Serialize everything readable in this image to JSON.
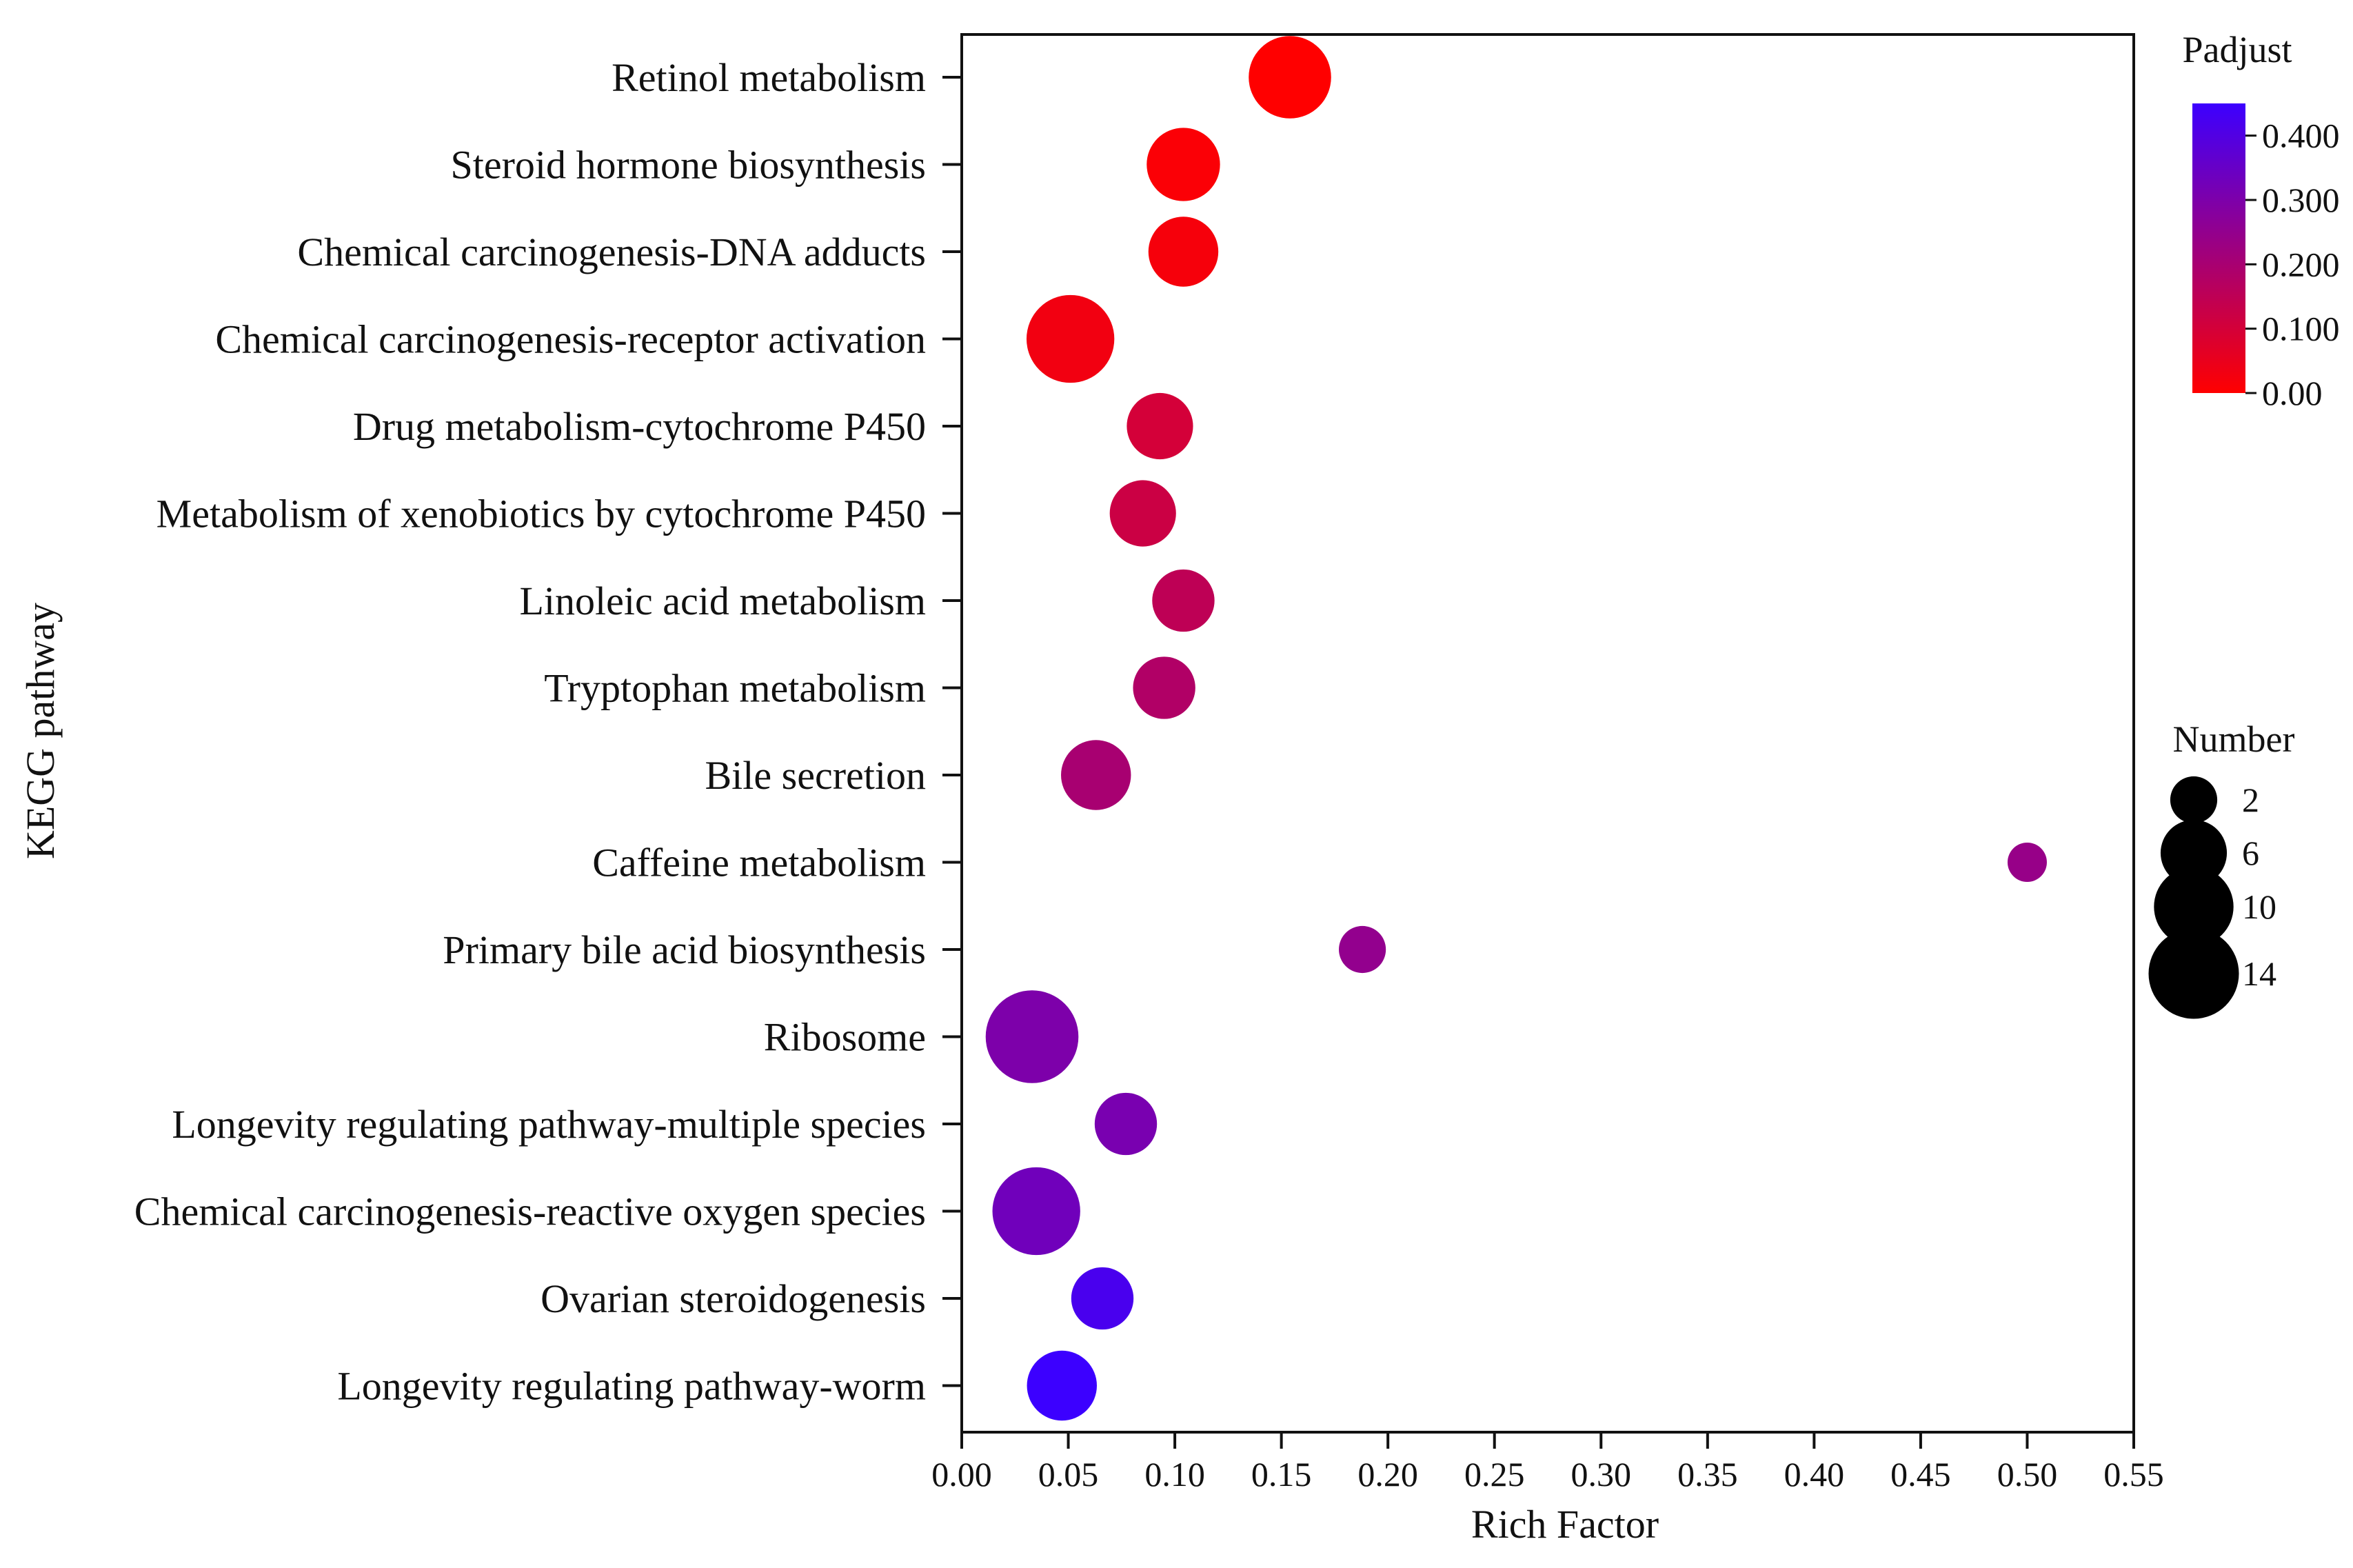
{
  "chart_data": {
    "type": "scatter",
    "xlabel": "Rich Factor",
    "ylabel": "KEGG pathway",
    "xlim": [
      0.0,
      0.55
    ],
    "xticks": [
      "0.00",
      "0.05",
      "0.10",
      "0.15",
      "0.20",
      "0.25",
      "0.30",
      "0.35",
      "0.40",
      "0.45",
      "0.50",
      "0.55"
    ],
    "grid": false,
    "points": [
      {
        "pathway": "Retinol metabolism",
        "rich_factor": 0.154,
        "number": 11,
        "padjust": 0.0
      },
      {
        "pathway": "Steroid hormone biosynthesis",
        "rich_factor": 0.104,
        "number": 8,
        "padjust": 0.01
      },
      {
        "pathway": "Chemical carcinogenesis-DNA adducts",
        "rich_factor": 0.104,
        "number": 7,
        "padjust": 0.02
      },
      {
        "pathway": "Chemical carcinogenesis-receptor activation",
        "rich_factor": 0.051,
        "number": 13,
        "padjust": 0.03
      },
      {
        "pathway": "Drug metabolism-cytochrome P450",
        "rich_factor": 0.093,
        "number": 6,
        "padjust": 0.1
      },
      {
        "pathway": "Metabolism of xenobiotics by cytochrome P450",
        "rich_factor": 0.085,
        "number": 6,
        "padjust": 0.12
      },
      {
        "pathway": "Linoleic acid metabolism",
        "rich_factor": 0.104,
        "number": 5,
        "padjust": 0.15
      },
      {
        "pathway": "Tryptophan metabolism",
        "rich_factor": 0.095,
        "number": 5,
        "padjust": 0.18
      },
      {
        "pathway": "Bile secretion",
        "rich_factor": 0.063,
        "number": 7,
        "padjust": 0.2
      },
      {
        "pathway": "Caffeine metabolism",
        "rich_factor": 0.5,
        "number": 1,
        "padjust": 0.24
      },
      {
        "pathway": "Primary bile acid biosynthesis",
        "rich_factor": 0.188,
        "number": 2,
        "padjust": 0.25
      },
      {
        "pathway": "Ribosome",
        "rich_factor": 0.033,
        "number": 15,
        "padjust": 0.3
      },
      {
        "pathway": "Longevity regulating pathway-multiple species",
        "rich_factor": 0.077,
        "number": 5,
        "padjust": 0.31
      },
      {
        "pathway": "Chemical carcinogenesis-reactive oxygen species",
        "rich_factor": 0.035,
        "number": 13,
        "padjust": 0.33
      },
      {
        "pathway": "Ovarian steroidogenesis",
        "rich_factor": 0.066,
        "number": 5,
        "padjust": 0.42
      },
      {
        "pathway": "Longevity regulating pathway-worm",
        "rich_factor": 0.047,
        "number": 7,
        "padjust": 0.45
      }
    ],
    "color_legend": {
      "title": "Padjust",
      "min": 0.0,
      "max": 0.45,
      "low_color": "#ff0000",
      "high_color": "#3c00ff",
      "ticks": [
        {
          "value": 0.0,
          "label": "0.00"
        },
        {
          "value": 0.1,
          "label": "0.100"
        },
        {
          "value": 0.2,
          "label": "0.200"
        },
        {
          "value": 0.3,
          "label": "0.300"
        },
        {
          "value": 0.4,
          "label": "0.400"
        }
      ]
    },
    "size_legend": {
      "title": "Number",
      "entries": [
        {
          "value": 2,
          "label": "2"
        },
        {
          "value": 6,
          "label": "6"
        },
        {
          "value": 10,
          "label": "10"
        },
        {
          "value": 14,
          "label": "14"
        }
      ]
    }
  }
}
